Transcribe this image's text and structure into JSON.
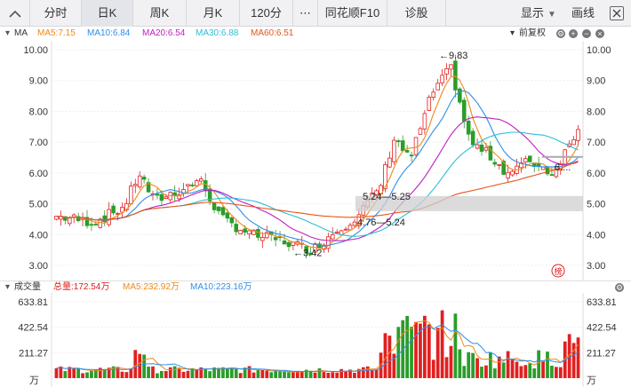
{
  "tabs": [
    {
      "label": "分时",
      "active": false
    },
    {
      "label": "日K",
      "active": true
    },
    {
      "label": "周K",
      "active": false
    },
    {
      "label": "月K",
      "active": false
    },
    {
      "label": "120分",
      "active": false
    },
    {
      "label": "⋯",
      "active": false
    },
    {
      "label": "同花顺F10",
      "active": false
    },
    {
      "label": "诊股",
      "active": false
    }
  ],
  "toolbar": {
    "display": "显示",
    "draw": "画线"
  },
  "ma_legend": {
    "prefix": "MA",
    "items": [
      {
        "label": "MA5:7.15",
        "color": "#f08a18"
      },
      {
        "label": "MA10:6.84",
        "color": "#2f8fe8"
      },
      {
        "label": "MA20:6.54",
        "color": "#c020c0"
      },
      {
        "label": "MA30:6.88",
        "color": "#2cbfd4"
      },
      {
        "label": "MA60:6.51",
        "color": "#e8531a"
      }
    ],
    "adjust": "前复权"
  },
  "vol_legend": {
    "title": "成交量",
    "items": [
      {
        "label": "总量:172.54万",
        "color": "#e02020"
      },
      {
        "label": "MA5:232.92万",
        "color": "#f08a18"
      },
      {
        "label": "MA10:223.16万",
        "color": "#2f8fe8"
      }
    ]
  },
  "chart_data": [
    {
      "type": "candlestick",
      "title": "",
      "y_ticks": [
        "10.00",
        "9.00",
        "8.00",
        "7.00",
        "6.00",
        "5.00",
        "4.00",
        "3.00"
      ],
      "ylim": [
        3.0,
        10.0
      ],
      "annotations": [
        {
          "label": "←9.83",
          "value": 9.83
        },
        {
          "label": "←3.42",
          "value": 3.42
        },
        {
          "label": "5.24—5.25"
        },
        {
          "label": "4.76—5.24"
        },
        {
          "label": "6...."
        }
      ],
      "grid": true,
      "legend": "top-left",
      "badge": "榜",
      "colors": {
        "up": "#e02020",
        "down": "#2a9d2a",
        "ma5": "#f08a18",
        "ma10": "#2f8fe8",
        "ma20": "#c020c0",
        "ma30": "#2cbfd4",
        "ma60": "#e8531a"
      }
    },
    {
      "type": "bar",
      "title": "",
      "y_ticks": [
        "633.81",
        "422.54",
        "211.27",
        "万"
      ],
      "ylim": [
        0,
        633.81
      ],
      "unit": "万",
      "legend": "top-left",
      "colors": {
        "up": "#e02020",
        "down": "#2a9d2a"
      }
    }
  ]
}
